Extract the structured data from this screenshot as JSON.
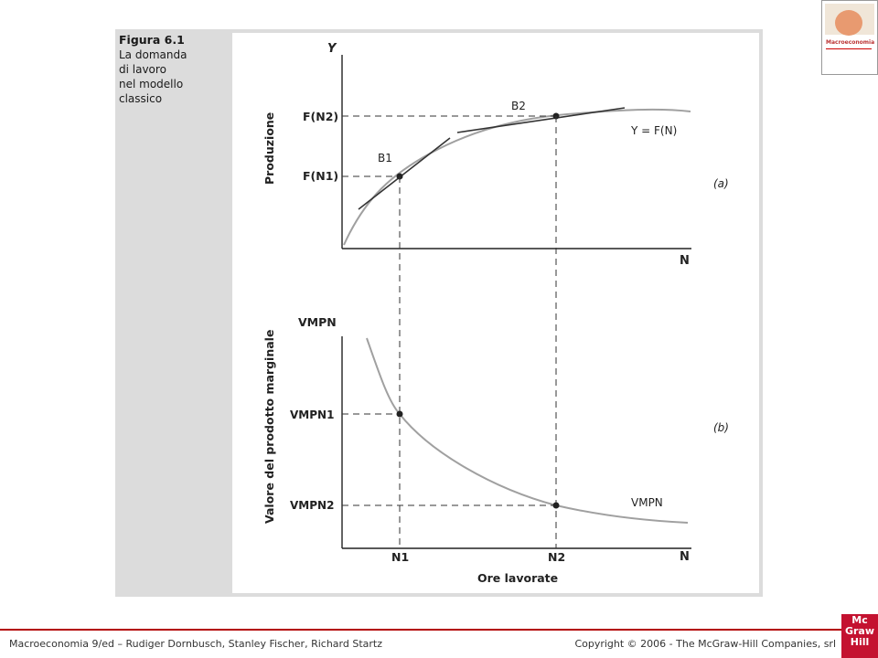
{
  "caption": {
    "title": "Figura 6.1",
    "lines": [
      "La domanda",
      "di lavoro",
      "nel modello",
      "classico"
    ]
  },
  "panel_a": {
    "y_axis_name": "Y",
    "x_axis_name": "N",
    "ylabel": "Produzione",
    "tick_high": "F(N2)",
    "tick_low": "F(N1)",
    "point1_label": "B1",
    "point2_label": "B2",
    "curve_label": "Y = F(N)",
    "panel_tag": "(a)"
  },
  "panel_b": {
    "y_axis_name": "VMPN",
    "x_axis_name": "N",
    "ylabel": "Valore del prodotto marginale",
    "tick_high": "VMPN1",
    "tick_low": "VMPN2",
    "x_tick1": "N1",
    "x_tick2": "N2",
    "xlabel": "Ore lavorate",
    "curve_label": "VMPN",
    "panel_tag": "(b)"
  },
  "thumbnail": {
    "title": "Macroeconomia"
  },
  "footer": {
    "left": "Macroeconomia 9/ed – Rudiger Dornbusch, Stanley Fischer, Richard Startz",
    "right": "Copyright © 2006 - The McGraw-Hill Companies, srl",
    "logo_lines": [
      "Mc",
      "Graw",
      "Hill"
    ]
  },
  "colors": {
    "curve": "#a0a0a0",
    "frame": "#dcdcdc",
    "brand": "#c41230"
  }
}
